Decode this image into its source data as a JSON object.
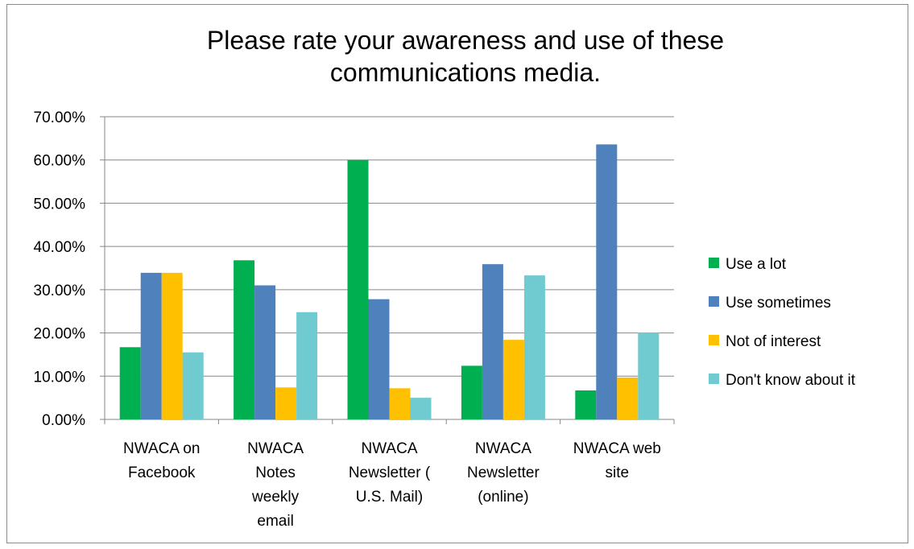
{
  "chart_data": {
    "type": "bar",
    "title_lines": [
      "Please rate your awareness and use of these",
      "communications media."
    ],
    "categories": [
      [
        "NWACA on",
        "Facebook"
      ],
      [
        "NWACA",
        "Notes",
        "weekly",
        "email"
      ],
      [
        "NWACA",
        "Newsletter (",
        "U.S. Mail)"
      ],
      [
        "NWACA",
        "Newsletter",
        "(online)"
      ],
      [
        "NWACA web",
        "site"
      ]
    ],
    "series": [
      {
        "name": "Use a lot",
        "color": "#00b050",
        "values": [
          16.7,
          36.8,
          60.0,
          12.4,
          6.7
        ]
      },
      {
        "name": "Use sometimes",
        "color": "#4f81bd",
        "values": [
          33.9,
          31.0,
          27.8,
          35.9,
          63.6
        ]
      },
      {
        "name": "Not of interest",
        "color": "#ffc000",
        "values": [
          33.9,
          7.4,
          7.2,
          18.4,
          9.7
        ]
      },
      {
        "name": "Don't know about it",
        "color": "#6fcbcf",
        "values": [
          15.5,
          24.8,
          5.0,
          33.3,
          20.1
        ]
      }
    ],
    "ylim": [
      0,
      70
    ],
    "yticks": [
      "0.00%",
      "10.00%",
      "20.00%",
      "30.00%",
      "40.00%",
      "50.00%",
      "60.00%",
      "70.00%"
    ],
    "grid": true,
    "legend_position": "right"
  }
}
